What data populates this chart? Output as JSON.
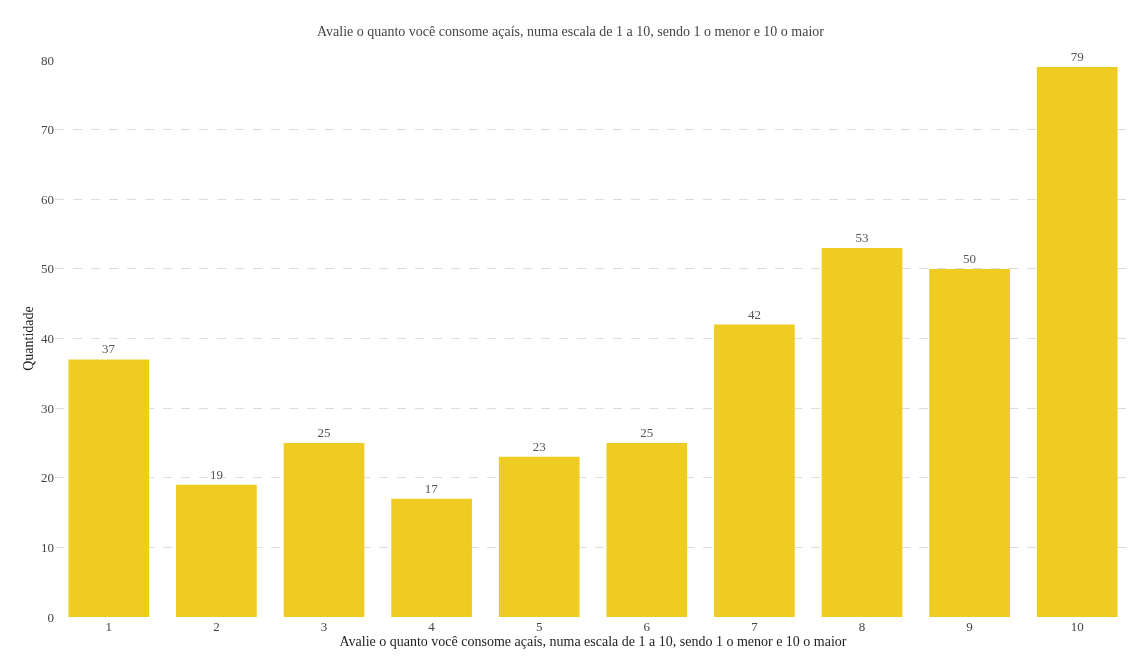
{
  "chart_data": {
    "type": "bar",
    "title": "Avalie o quanto você consome açaís, numa escala de 1 a 10, sendo 1 o menor e 10 o maior",
    "xlabel": "Avalie o quanto você consome açaís, numa escala de 1 a 10, sendo 1 o menor e 10 o maior",
    "ylabel": "Quantidade",
    "categories": [
      "1",
      "2",
      "3",
      "4",
      "5",
      "6",
      "7",
      "8",
      "9",
      "10"
    ],
    "values": [
      37,
      19,
      25,
      17,
      23,
      25,
      42,
      53,
      50,
      79
    ],
    "color": "#efcc22",
    "ylim": [
      0,
      80
    ],
    "yticks": [
      0,
      10,
      20,
      30,
      40,
      50,
      60,
      70,
      80
    ],
    "grid": "y",
    "data_labels": true
  }
}
